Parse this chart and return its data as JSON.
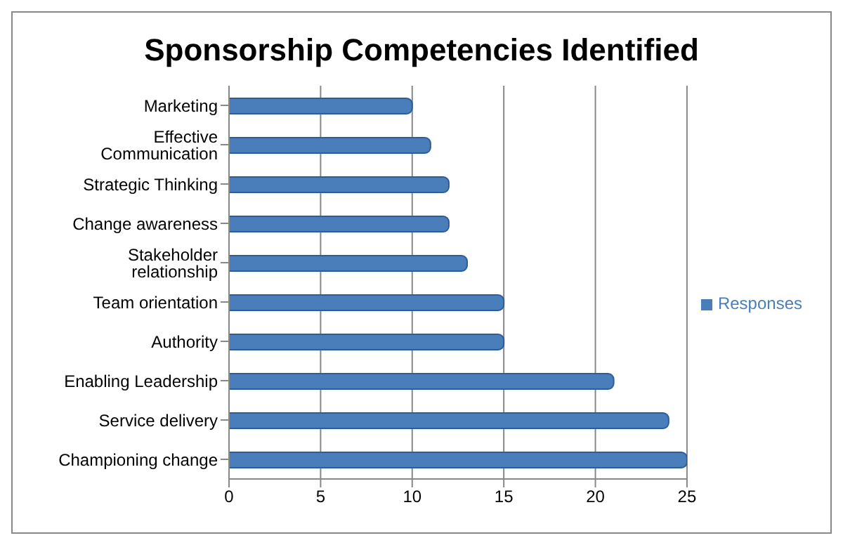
{
  "chart_data": {
    "type": "bar",
    "title": "Sponsorship Competencies Identified",
    "orientation": "horizontal",
    "categories": [
      "Marketing",
      "Effective Communication",
      "Strategic Thinking",
      "Change awareness",
      "Stakeholder relationship",
      "Team orientation",
      "Authority",
      "Enabling Leadership",
      "Service delivery",
      "Championing change"
    ],
    "series": [
      {
        "name": "Responses",
        "color": "#4a7ebb",
        "values": [
          10,
          11,
          12,
          12,
          13,
          15,
          15,
          21,
          24,
          25
        ]
      }
    ],
    "xlim": [
      0,
      25
    ],
    "xticks": [
      0,
      5,
      10,
      15,
      20,
      25
    ],
    "grid": "x",
    "legend": "right"
  }
}
